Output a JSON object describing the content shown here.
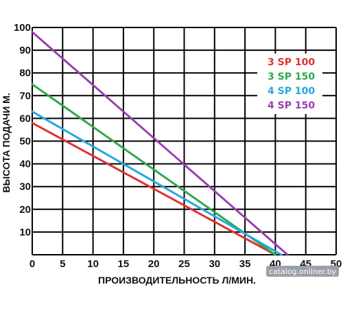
{
  "chart_data": {
    "type": "line",
    "xlabel": "ПРОИЗВОДИТЕЛЬНОСТЬ Л/МИН.",
    "ylabel": "ВЫСОТА ПОДАЧИ М.",
    "xlim": [
      0,
      50
    ],
    "ylim": [
      0,
      100
    ],
    "x_ticks": [
      "0",
      "5",
      "10",
      "15",
      "20",
      "25",
      "30",
      "35",
      "40",
      "45",
      "50"
    ],
    "y_ticks": [
      "10",
      "20",
      "30",
      "40",
      "50",
      "60",
      "70",
      "80",
      "90",
      "100"
    ],
    "grid": true,
    "legend_position": "top-right",
    "series": [
      {
        "name": "3 SP 100",
        "color": "#e03030",
        "points": [
          [
            0,
            58
          ],
          [
            40,
            0
          ]
        ]
      },
      {
        "name": "3 SP 150",
        "color": "#2fa84a",
        "points": [
          [
            0,
            75
          ],
          [
            40,
            0
          ]
        ]
      },
      {
        "name": "4 SP 100",
        "color": "#25a8e0",
        "points": [
          [
            0,
            63
          ],
          [
            41,
            0
          ]
        ]
      },
      {
        "name": "4 SP 150",
        "color": "#9b3fb0",
        "points": [
          [
            0,
            98
          ],
          [
            42,
            0
          ]
        ]
      }
    ]
  },
  "watermark": "catalog.onliner.by"
}
